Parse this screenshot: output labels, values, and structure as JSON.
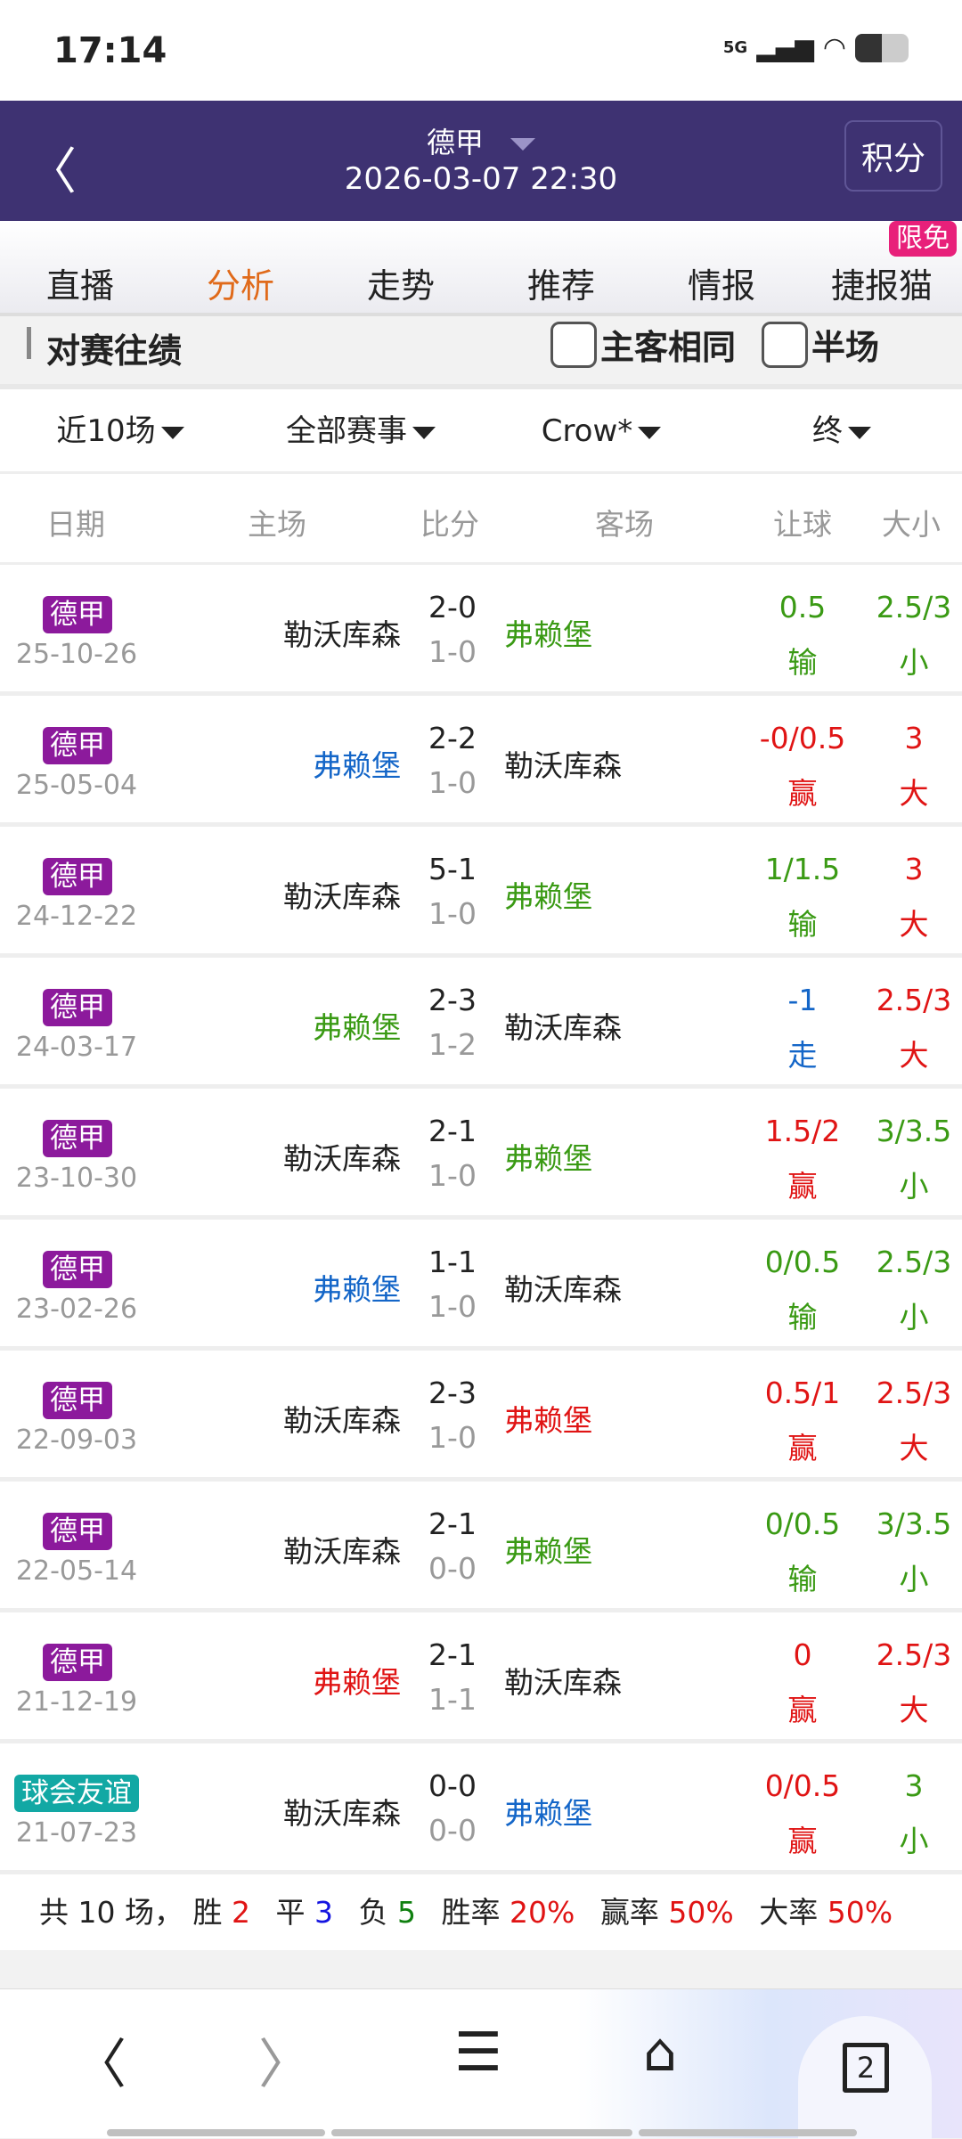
{
  "status": {
    "time": "17:14",
    "network": "5G"
  },
  "header": {
    "league": "德甲",
    "datetime": "2026-03-07 22:30",
    "points_button": "积分"
  },
  "tabs": [
    {
      "label": "直播"
    },
    {
      "label": "分析",
      "active": true
    },
    {
      "label": "走势"
    },
    {
      "label": "推荐"
    },
    {
      "label": "情报"
    },
    {
      "label": "捷报猫"
    }
  ],
  "free_badge": "限免",
  "section": {
    "title": "对赛往绩",
    "same_home_away": "主客相同",
    "half_time": "半场"
  },
  "filters": [
    "近10场",
    "全部赛事",
    "Crow*",
    "终"
  ],
  "columns": {
    "date": "日期",
    "home": "主场",
    "score": "比分",
    "away": "客场",
    "handicap": "让球",
    "ou": "大小"
  },
  "colors": {
    "green": "#3a9a14",
    "blue": "#1466c8",
    "red": "#e01414",
    "black": "#222222",
    "purple": "#8c1a9c",
    "teal": "#12a8a4"
  },
  "rows": [
    {
      "league": "德甲",
      "league_color": "purple",
      "date": "25-10-26",
      "home": "勒沃库森",
      "home_color": "black",
      "score": "2-0",
      "half": "1-0",
      "away": "弗赖堡",
      "away_color": "green",
      "hc": "0.5",
      "hc_res": "输",
      "hc_color": "green",
      "ou": "2.5/3",
      "ou_res": "小",
      "ou_color": "green"
    },
    {
      "league": "德甲",
      "league_color": "purple",
      "date": "25-05-04",
      "home": "弗赖堡",
      "home_color": "blue",
      "score": "2-2",
      "half": "1-0",
      "away": "勒沃库森",
      "away_color": "black",
      "hc": "-0/0.5",
      "hc_res": "赢",
      "hc_color": "red",
      "ou": "3",
      "ou_res": "大",
      "ou_color": "red"
    },
    {
      "league": "德甲",
      "league_color": "purple",
      "date": "24-12-22",
      "home": "勒沃库森",
      "home_color": "black",
      "score": "5-1",
      "half": "1-0",
      "away": "弗赖堡",
      "away_color": "green",
      "hc": "1/1.5",
      "hc_res": "输",
      "hc_color": "green",
      "ou": "3",
      "ou_res": "大",
      "ou_color": "red"
    },
    {
      "league": "德甲",
      "league_color": "purple",
      "date": "24-03-17",
      "home": "弗赖堡",
      "home_color": "green",
      "score": "2-3",
      "half": "1-2",
      "away": "勒沃库森",
      "away_color": "black",
      "hc": "-1",
      "hc_res": "走",
      "hc_color": "blue",
      "ou": "2.5/3",
      "ou_res": "大",
      "ou_color": "red"
    },
    {
      "league": "德甲",
      "league_color": "purple",
      "date": "23-10-30",
      "home": "勒沃库森",
      "home_color": "black",
      "score": "2-1",
      "half": "1-0",
      "away": "弗赖堡",
      "away_color": "green",
      "hc": "1.5/2",
      "hc_res": "赢",
      "hc_color": "red",
      "ou": "3/3.5",
      "ou_res": "小",
      "ou_color": "green"
    },
    {
      "league": "德甲",
      "league_color": "purple",
      "date": "23-02-26",
      "home": "弗赖堡",
      "home_color": "blue",
      "score": "1-1",
      "half": "1-0",
      "away": "勒沃库森",
      "away_color": "black",
      "hc": "0/0.5",
      "hc_res": "输",
      "hc_color": "green",
      "ou": "2.5/3",
      "ou_res": "小",
      "ou_color": "green"
    },
    {
      "league": "德甲",
      "league_color": "purple",
      "date": "22-09-03",
      "home": "勒沃库森",
      "home_color": "black",
      "score": "2-3",
      "half": "1-0",
      "away": "弗赖堡",
      "away_color": "red",
      "hc": "0.5/1",
      "hc_res": "赢",
      "hc_color": "red",
      "ou": "2.5/3",
      "ou_res": "大",
      "ou_color": "red"
    },
    {
      "league": "德甲",
      "league_color": "purple",
      "date": "22-05-14",
      "home": "勒沃库森",
      "home_color": "black",
      "score": "2-1",
      "half": "0-0",
      "away": "弗赖堡",
      "away_color": "green",
      "hc": "0/0.5",
      "hc_res": "输",
      "hc_color": "green",
      "ou": "3/3.5",
      "ou_res": "小",
      "ou_color": "green"
    },
    {
      "league": "德甲",
      "league_color": "purple",
      "date": "21-12-19",
      "home": "弗赖堡",
      "home_color": "red",
      "score": "2-1",
      "half": "1-1",
      "away": "勒沃库森",
      "away_color": "black",
      "hc": "0",
      "hc_res": "赢",
      "hc_color": "red",
      "ou": "2.5/3",
      "ou_res": "大",
      "ou_color": "red"
    },
    {
      "league": "球会友谊",
      "league_color": "teal",
      "date": "21-07-23",
      "home": "勒沃库森",
      "home_color": "black",
      "score": "0-0",
      "half": "0-0",
      "away": "弗赖堡",
      "away_color": "blue",
      "hc": "0/0.5",
      "hc_res": "赢",
      "hc_color": "red",
      "ou": "3",
      "ou_res": "小",
      "ou_color": "green"
    }
  ],
  "summary": {
    "total": "共 10 场，",
    "win_label": "胜",
    "win": "2",
    "draw_label": "平",
    "draw": "3",
    "loss_label": "负",
    "loss": "5",
    "win_rate_label": "胜率",
    "win_rate": "20%",
    "cover_rate_label": "赢率",
    "cover_rate": "50%",
    "over_rate_label": "大率",
    "over_rate": "50%"
  },
  "browser": {
    "tab_count": "2"
  }
}
